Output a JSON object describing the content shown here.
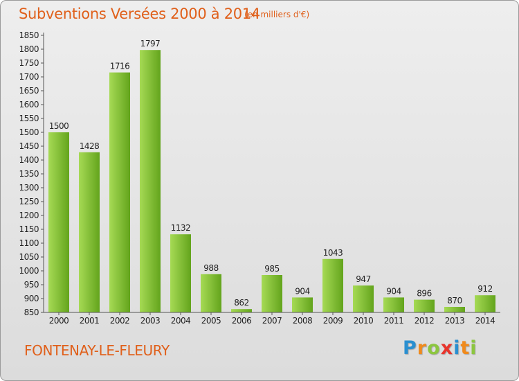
{
  "header": {
    "title": "Subventions Versées 2000 à 2014",
    "subtitle": "(en milliers d'€)"
  },
  "footer": {
    "commune": "FONTENAY-LE-FLEURY",
    "logo_text": "Proxiti",
    "logo_letters": [
      {
        "char": "P",
        "color": "#2a8fd0"
      },
      {
        "char": "r",
        "color": "#f08a1c"
      },
      {
        "char": "o",
        "color": "#8cc63f"
      },
      {
        "char": "x",
        "color": "#e8342c"
      },
      {
        "char": "i",
        "color": "#2a8fd0"
      },
      {
        "char": "t",
        "color": "#f08a1c"
      },
      {
        "char": "i",
        "color": "#8cc63f"
      }
    ]
  },
  "chart_data": {
    "type": "bar",
    "title": "Subventions Versées 2000 à 2014",
    "subtitle": "(en milliers d'€)",
    "xlabel": "",
    "ylabel": "",
    "categories": [
      "2000",
      "2001",
      "2002",
      "2003",
      "2004",
      "2005",
      "2006",
      "2007",
      "2008",
      "2009",
      "2010",
      "2011",
      "2012",
      "2013",
      "2014"
    ],
    "values": [
      1500,
      1428,
      1716,
      1797,
      1132,
      988,
      862,
      985,
      904,
      1043,
      947,
      904,
      896,
      870,
      912
    ],
    "ylim": [
      850,
      1850
    ],
    "ytick_step": 50,
    "grid": false,
    "colors": {
      "bar_light": "#9fd44f",
      "bar_dark": "#5e9e18",
      "axis": "#555555",
      "text": "#222222"
    }
  }
}
